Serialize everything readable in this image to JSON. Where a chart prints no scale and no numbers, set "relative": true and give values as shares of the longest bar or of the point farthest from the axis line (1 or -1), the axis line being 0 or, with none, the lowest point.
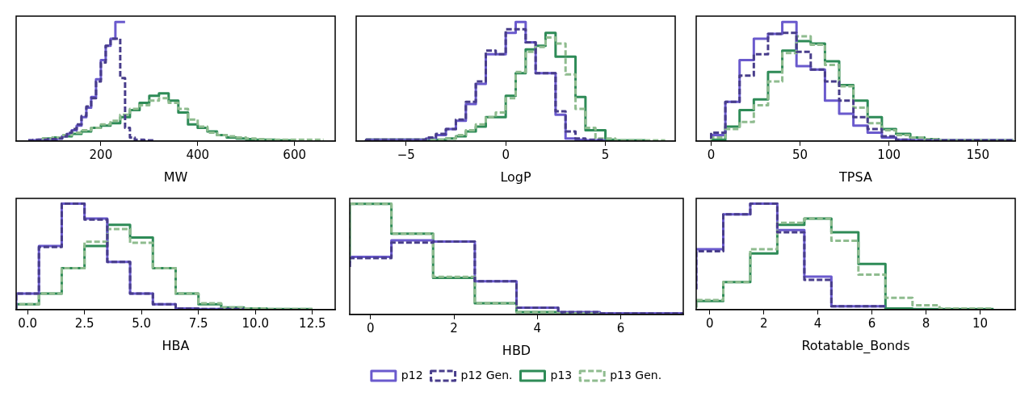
{
  "chart_data": [
    {
      "type": "step",
      "relative": true,
      "xlabel": "MW",
      "xlim": [
        25,
        684
      ],
      "xticks": [
        200,
        400,
        600
      ],
      "series": [
        {
          "color": "#6a5acd",
          "line_style": "solid",
          "x": [
            50,
            60,
            70,
            80,
            90,
            100,
            110,
            120,
            130,
            140,
            150,
            160,
            170,
            180,
            190,
            200,
            210,
            220,
            230,
            240,
            250
          ],
          "values": [
            0.005,
            0.005,
            0.005,
            0.01,
            0.01,
            0.01,
            0.015,
            0.02,
            0.04,
            0.06,
            0.09,
            0.13,
            0.2,
            0.28,
            0.37,
            0.52,
            0.68,
            0.8,
            0.86,
            1.0,
            1.0
          ]
        },
        {
          "color": "#483d8b",
          "line_style": "dashed",
          "x": [
            50,
            60,
            70,
            80,
            90,
            100,
            110,
            120,
            130,
            140,
            150,
            160,
            170,
            180,
            190,
            200,
            210,
            220,
            230,
            240,
            250,
            260,
            270,
            280,
            290,
            300,
            310
          ],
          "values": [
            0.005,
            0.005,
            0.01,
            0.01,
            0.01,
            0.015,
            0.015,
            0.02,
            0.04,
            0.07,
            0.1,
            0.14,
            0.21,
            0.29,
            0.36,
            0.5,
            0.66,
            0.8,
            0.86,
            0.86,
            0.53,
            0.11,
            0.03,
            0.01,
            0.01,
            0.005,
            0.005
          ]
        },
        {
          "color": "#2e8b57",
          "line_style": "solid",
          "x": [
            80,
            100,
            120,
            140,
            160,
            180,
            200,
            220,
            240,
            260,
            280,
            300,
            320,
            340,
            360,
            380,
            400,
            420,
            440,
            460,
            480,
            500,
            520,
            540,
            560,
            580,
            600
          ],
          "values": [
            0.01,
            0.02,
            0.03,
            0.04,
            0.06,
            0.08,
            0.11,
            0.13,
            0.15,
            0.2,
            0.26,
            0.32,
            0.38,
            0.4,
            0.34,
            0.24,
            0.14,
            0.11,
            0.08,
            0.05,
            0.03,
            0.02,
            0.015,
            0.01,
            0.01,
            0.005,
            0.005
          ]
        },
        {
          "color": "#8fbc8f",
          "line_style": "dashed",
          "x": [
            80,
            100,
            120,
            140,
            160,
            180,
            200,
            220,
            240,
            260,
            280,
            300,
            320,
            340,
            360,
            380,
            400,
            420,
            440,
            460,
            480,
            500,
            520,
            540,
            560,
            580,
            600,
            620,
            640,
            660
          ],
          "values": [
            0.01,
            0.02,
            0.03,
            0.05,
            0.07,
            0.09,
            0.11,
            0.14,
            0.17,
            0.22,
            0.27,
            0.3,
            0.34,
            0.36,
            0.32,
            0.27,
            0.18,
            0.12,
            0.07,
            0.05,
            0.04,
            0.03,
            0.02,
            0.015,
            0.01,
            0.01,
            0.01,
            0.01,
            0.01,
            0.01
          ]
        }
      ]
    },
    {
      "type": "step",
      "relative": true,
      "xlabel": "LogP",
      "xlim": [
        -7.5,
        8.5
      ],
      "xticks": [
        {
          "value": -5,
          "label": "−5"
        },
        0,
        5
      ],
      "series": [
        {
          "color": "#6a5acd",
          "line_style": "solid",
          "x": [
            -7,
            -4,
            -3.5,
            -3,
            -2.5,
            -2,
            -1.5,
            -1,
            -0.5,
            0,
            0.5,
            1,
            1.5,
            2,
            2.5,
            3,
            3.5,
            4,
            4.5,
            5
          ],
          "values": [
            0.005,
            0.01,
            0.02,
            0.05,
            0.1,
            0.17,
            0.31,
            0.48,
            0.73,
            0.73,
            0.91,
            1.0,
            0.83,
            0.57,
            0.57,
            0.22,
            0.02,
            0.01,
            0.005,
            0.005
          ]
        },
        {
          "color": "#483d8b",
          "line_style": "dashed",
          "x": [
            -7,
            -4,
            -3.5,
            -3,
            -2.5,
            -2,
            -1.5,
            -1,
            -0.5,
            0,
            0.5,
            1,
            1.5,
            2,
            2.5,
            3,
            3.5,
            4,
            4.5,
            5
          ],
          "values": [
            0.005,
            0.01,
            0.03,
            0.06,
            0.1,
            0.18,
            0.33,
            0.5,
            0.76,
            0.73,
            0.94,
            0.94,
            0.83,
            0.57,
            0.57,
            0.25,
            0.08,
            0.02,
            0.01,
            0.01
          ]
        },
        {
          "color": "#2e8b57",
          "line_style": "solid",
          "x": [
            -7,
            -3,
            -2.5,
            -2,
            -1.5,
            -1,
            -0.5,
            0,
            0.5,
            1,
            1.5,
            2,
            2.5,
            3.5,
            4,
            4.5,
            5,
            5.5,
            6,
            7
          ],
          "values": [
            0.005,
            0.01,
            0.02,
            0.04,
            0.08,
            0.12,
            0.2,
            0.2,
            0.38,
            0.57,
            0.77,
            0.8,
            0.91,
            0.71,
            0.37,
            0.09,
            0.09,
            0.01,
            0.005,
            0.005
          ]
        },
        {
          "color": "#8fbc8f",
          "line_style": "dashed",
          "x": [
            -7,
            -3,
            -2.5,
            -2,
            -1.5,
            -1,
            -0.5,
            0,
            0.5,
            1,
            1.5,
            2,
            2.5,
            3,
            3.5,
            4,
            4.5,
            5,
            5.5,
            6,
            8
          ],
          "values": [
            0.005,
            0.01,
            0.02,
            0.05,
            0.09,
            0.14,
            0.2,
            0.24,
            0.36,
            0.58,
            0.75,
            0.79,
            0.87,
            0.82,
            0.56,
            0.27,
            0.11,
            0.02,
            0.02,
            0.005,
            0.005
          ]
        }
      ]
    },
    {
      "type": "step",
      "relative": true,
      "xlabel": "TPSA",
      "xlim": [
        -8.4,
        171
      ],
      "xticks": [
        0,
        50,
        100,
        150
      ],
      "series": [
        {
          "color": "#6a5acd",
          "line_style": "solid",
          "x": [
            0,
            8,
            16,
            24,
            32,
            40,
            48,
            56,
            64,
            72,
            80,
            88,
            96,
            104,
            112,
            120,
            170
          ],
          "values": [
            0.02,
            0.05,
            0.33,
            0.68,
            0.86,
            0.9,
            1.0,
            0.63,
            0.6,
            0.34,
            0.23,
            0.13,
            0.07,
            0.03,
            0.01,
            0.005,
            0.005
          ]
        },
        {
          "color": "#483d8b",
          "line_style": "dashed",
          "x": [
            0,
            8,
            16,
            24,
            32,
            40,
            48,
            56,
            64,
            72,
            80,
            88,
            96,
            104,
            112,
            120,
            170
          ],
          "values": [
            0.02,
            0.07,
            0.33,
            0.55,
            0.73,
            0.9,
            0.91,
            0.75,
            0.6,
            0.5,
            0.34,
            0.2,
            0.1,
            0.04,
            0.01,
            0.005,
            0.005
          ]
        },
        {
          "color": "#2e8b57",
          "line_style": "solid",
          "x": [
            0,
            8,
            16,
            24,
            32,
            40,
            48,
            56,
            64,
            72,
            80,
            88,
            96,
            104,
            112,
            120,
            128,
            136,
            170
          ],
          "values": [
            0.01,
            0.01,
            0.12,
            0.26,
            0.35,
            0.58,
            0.76,
            0.84,
            0.82,
            0.67,
            0.47,
            0.34,
            0.2,
            0.1,
            0.06,
            0.03,
            0.015,
            0.005,
            0.005
          ]
        },
        {
          "color": "#8fbc8f",
          "line_style": "dashed",
          "x": [
            0,
            8,
            16,
            24,
            32,
            40,
            48,
            56,
            64,
            72,
            80,
            88,
            96,
            104,
            112,
            120,
            128,
            136,
            170
          ],
          "values": [
            0.01,
            0.03,
            0.1,
            0.16,
            0.3,
            0.5,
            0.74,
            0.88,
            0.81,
            0.64,
            0.46,
            0.28,
            0.15,
            0.09,
            0.05,
            0.03,
            0.015,
            0.005,
            0.005
          ]
        }
      ]
    },
    {
      "type": "step",
      "relative": true,
      "xlabel": "HBA",
      "xlim": [
        -0.5,
        13.5
      ],
      "xticks": [
        {
          "value": 0,
          "label": "0.0"
        },
        2.5,
        {
          "value": 5,
          "label": "5.0"
        },
        7.5,
        {
          "value": 10,
          "label": "10.0"
        },
        12.5
      ],
      "series": [
        {
          "color": "#6a5acd",
          "line_style": "solid",
          "x": [
            -0.5,
            0.5,
            1.5,
            2.5,
            3.5,
            4.5,
            5.5,
            6.5,
            7.5,
            8.5,
            9.5
          ],
          "values": [
            0.01,
            0.15,
            0.6,
            1.0,
            0.86,
            0.45,
            0.15,
            0.05,
            0.01,
            0.005,
            0.005
          ]
        },
        {
          "color": "#483d8b",
          "line_style": "dashed",
          "x": [
            -0.5,
            0.5,
            1.5,
            2.5,
            3.5,
            4.5,
            5.5,
            6.5,
            7.5,
            8.5,
            9.5
          ],
          "values": [
            0.01,
            0.15,
            0.59,
            1.0,
            0.85,
            0.45,
            0.15,
            0.05,
            0.01,
            0.005,
            0.005
          ]
        },
        {
          "color": "#2e8b57",
          "line_style": "solid",
          "x": [
            -0.5,
            0.5,
            1.5,
            2.5,
            3.5,
            4.5,
            5.5,
            6.5,
            7.5,
            8.5,
            9.5,
            10.5,
            11.5,
            12.5
          ],
          "values": [
            0.005,
            0.05,
            0.15,
            0.39,
            0.6,
            0.8,
            0.68,
            0.39,
            0.15,
            0.05,
            0.02,
            0.01,
            0.005,
            0.005
          ]
        },
        {
          "color": "#8fbc8f",
          "line_style": "dashed",
          "x": [
            -0.5,
            0.5,
            1.5,
            2.5,
            3.5,
            4.5,
            5.5,
            6.5,
            7.5,
            8.5,
            9.5,
            10.5,
            11.5,
            12.5
          ],
          "values": [
            0.005,
            0.05,
            0.15,
            0.39,
            0.64,
            0.76,
            0.63,
            0.39,
            0.15,
            0.06,
            0.02,
            0.01,
            0.005,
            0.005
          ]
        }
      ]
    },
    {
      "type": "step",
      "relative": true,
      "xlabel": "HBD",
      "xlim": [
        -0.5,
        7.5
      ],
      "xticks": [
        0,
        2,
        4,
        6
      ],
      "legend": "bottom",
      "x": [
        -0.5,
        0.5,
        1.5,
        2.5,
        3.5,
        4.5,
        5.5,
        6.5,
        7.5
      ],
      "series": [
        {
          "name": "p12",
          "color": "#6a5acd",
          "line_style": "solid",
          "values": [
            0.43,
            0.52,
            0.67,
            0.66,
            0.3,
            0.06,
            0.02,
            0.01,
            0.01
          ]
        },
        {
          "name": "p12 Gen.",
          "color": "#483d8b",
          "line_style": "dashed",
          "values": [
            0.43,
            0.51,
            0.65,
            0.66,
            0.3,
            0.06,
            0.02,
            0.01,
            0.01
          ]
        },
        {
          "name": "p13",
          "color": "#2e8b57",
          "line_style": "solid",
          "values": [
            0.47,
            1.0,
            0.73,
            0.33,
            0.1,
            0.02,
            0.01,
            null,
            null
          ]
        },
        {
          "name": "p13 Gen.",
          "color": "#8fbc8f",
          "line_style": "dashed",
          "values": [
            0.49,
            1.0,
            0.73,
            0.34,
            0.1,
            0.02,
            0.01,
            null,
            null
          ]
        }
      ]
    },
    {
      "type": "step",
      "relative": true,
      "xlabel": "Rotatable_Bonds",
      "xlim": [
        -0.5,
        11.3
      ],
      "xticks": [
        0,
        2,
        4,
        6,
        8,
        10
      ],
      "series": [
        {
          "color": "#6a5acd",
          "line_style": "solid",
          "x": [
            -0.5,
            0.5,
            1.5,
            2.5,
            3.5,
            4.5,
            5.5,
            6.5
          ],
          "values": [
            0.19,
            0.57,
            0.9,
            1.0,
            0.75,
            0.31,
            0.03,
            0.03
          ]
        },
        {
          "color": "#483d8b",
          "line_style": "dashed",
          "x": [
            -0.5,
            0.5,
            1.5,
            2.5,
            3.5,
            4.5,
            5.5,
            6.5
          ],
          "values": [
            0.19,
            0.55,
            0.9,
            1.0,
            0.73,
            0.28,
            0.03,
            0.03
          ]
        },
        {
          "color": "#2e8b57",
          "line_style": "solid",
          "x": [
            -0.5,
            0.5,
            1.5,
            2.5,
            3.5,
            4.5,
            5.5,
            6.5,
            7.5,
            8.5,
            9.5,
            10.5
          ],
          "values": [
            0.02,
            0.08,
            0.26,
            0.53,
            0.8,
            0.86,
            0.73,
            0.43,
            0.01,
            0.005,
            0.005,
            0.005
          ]
        },
        {
          "color": "#8fbc8f",
          "line_style": "dashed",
          "x": [
            -0.5,
            0.5,
            1.5,
            2.5,
            3.5,
            4.5,
            5.5,
            6.5,
            7.5,
            8.5,
            9.5,
            10.5
          ],
          "values": [
            0.02,
            0.09,
            0.26,
            0.57,
            0.82,
            0.86,
            0.65,
            0.33,
            0.11,
            0.04,
            0.01,
            0.01
          ]
        }
      ]
    }
  ]
}
